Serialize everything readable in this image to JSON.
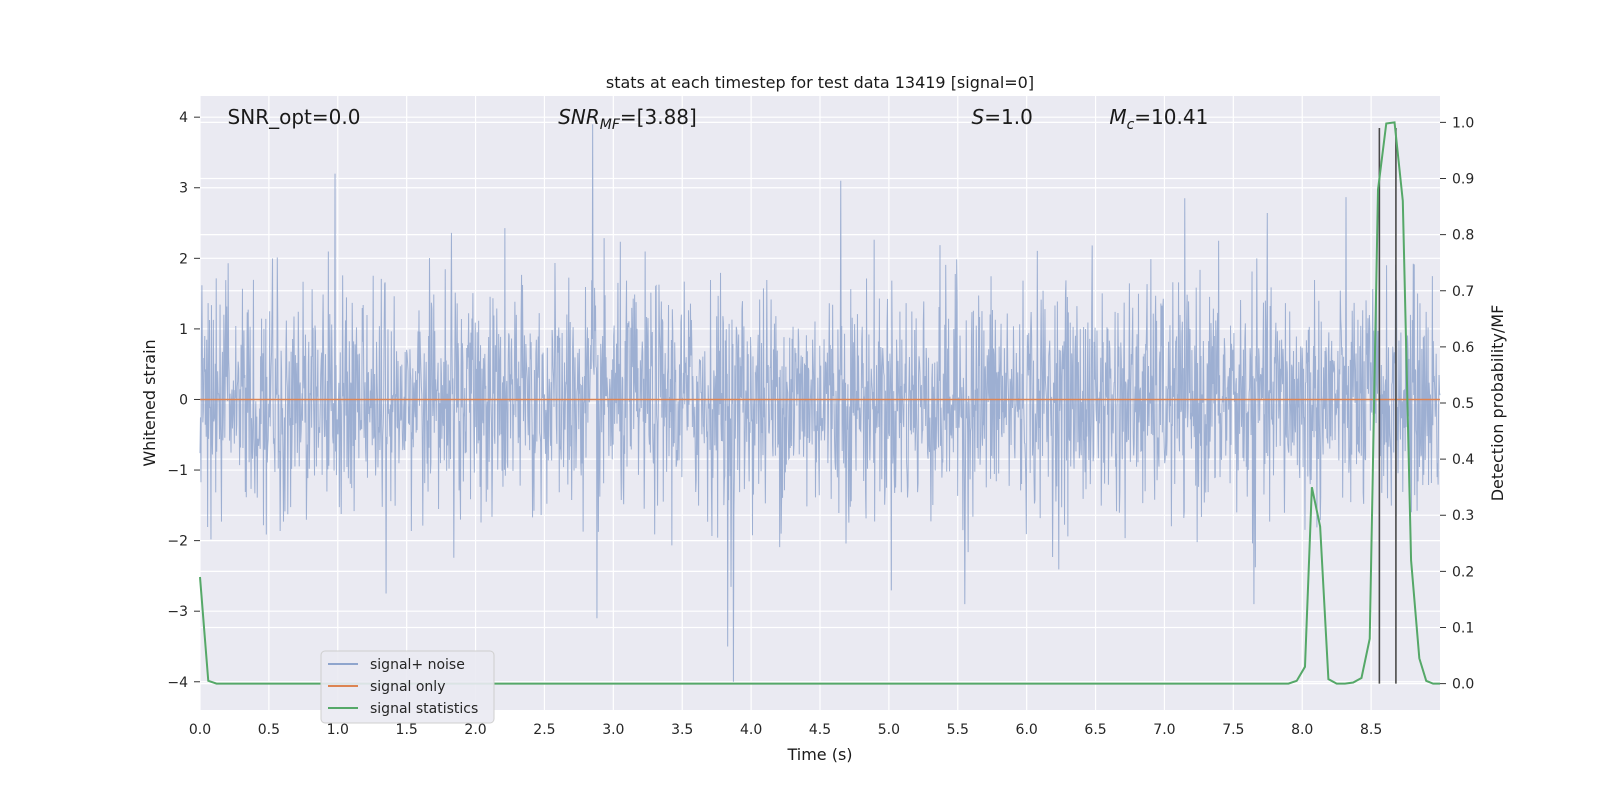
{
  "chart_data": {
    "type": "line",
    "title": "stats at each timestep for test data 13419 [signal=0]",
    "xlabel": "Time (s)",
    "ylabel": "Whitened strain",
    "y2label": "Detection probability/MF",
    "xlim": [
      0.0,
      9.0
    ],
    "ylim": [
      -4.4,
      4.3
    ],
    "y2lim": [
      -0.047,
      1.047
    ],
    "x_ticks": [
      "0.0",
      "0.5",
      "1.0",
      "1.5",
      "2.0",
      "2.5",
      "3.0",
      "3.5",
      "4.0",
      "4.5",
      "5.0",
      "5.5",
      "6.0",
      "6.5",
      "7.0",
      "7.5",
      "8.0",
      "8.5"
    ],
    "y_ticks": [
      "−4",
      "−3",
      "−2",
      "−1",
      "0",
      "1",
      "2",
      "3",
      "4"
    ],
    "y2_ticks": [
      "0.0",
      "0.1",
      "0.2",
      "0.3",
      "0.4",
      "0.5",
      "0.6",
      "0.7",
      "0.8",
      "0.9",
      "1.0"
    ],
    "grid": true,
    "background": "#eaeaf2",
    "annotations": [
      {
        "text": "SNR_opt=0.0",
        "italic": false,
        "x": 0.2
      },
      {
        "text": "SNR_MF=[3.88]",
        "italic": true,
        "x": 2.6
      },
      {
        "text": "S=1.0",
        "italic": true,
        "x": 5.6
      },
      {
        "text": "M_c=10.41",
        "italic": true,
        "x": 6.6
      }
    ],
    "annotation_y": 4.0,
    "legend": {
      "placement": "lower-left",
      "entries": [
        {
          "label": "signal+ noise",
          "color": "#8fa5cd"
        },
        {
          "label": "signal only",
          "color": "#dd8452"
        },
        {
          "label": "signal statistics",
          "color": "#55a868"
        }
      ]
    },
    "series": [
      {
        "name": "signal+ noise",
        "color": "#8fa5cd",
        "axis": "left",
        "description": "noise, approx. normal with std 0.8 over full range",
        "envelope": {
          "x": [
            0.0,
            9.0
          ],
          "extremes": [
            {
              "x": 0.98,
              "y": 3.2
            },
            {
              "x": 2.85,
              "y": 3.9
            },
            {
              "x": 4.65,
              "y": 3.1
            },
            {
              "x": 3.83,
              "y": -3.5
            },
            {
              "x": 3.87,
              "y": -4.0
            },
            {
              "x": 2.88,
              "y": -3.1
            },
            {
              "x": 1.35,
              "y": -2.75
            },
            {
              "x": 5.55,
              "y": -2.9
            },
            {
              "x": 7.65,
              "y": -2.9
            }
          ]
        }
      },
      {
        "name": "signal only",
        "color": "#dd8452",
        "axis": "left",
        "x": [
          0.0,
          9.0
        ],
        "values": [
          0.0,
          0.0
        ]
      },
      {
        "name": "signal statistics",
        "color": "#55a868",
        "axis": "right",
        "x": [
          0.0,
          0.06,
          0.12,
          0.2,
          1.0,
          2.0,
          3.0,
          4.0,
          5.0,
          6.0,
          7.0,
          7.9,
          7.96,
          8.02,
          8.07,
          8.13,
          8.19,
          8.25,
          8.31,
          8.37,
          8.43,
          8.49,
          8.55,
          8.61,
          8.67,
          8.73,
          8.79,
          8.85,
          8.9,
          8.95,
          9.0
        ],
        "values": [
          0.19,
          0.005,
          0.0,
          0.0,
          0.0,
          0.0,
          0.0,
          0.0,
          0.0,
          0.0,
          0.0,
          0.0,
          0.005,
          0.03,
          0.35,
          0.28,
          0.008,
          0.0,
          0.0,
          0.002,
          0.01,
          0.08,
          0.88,
          0.998,
          1.0,
          0.86,
          0.22,
          0.045,
          0.005,
          0.0,
          0.0
        ]
      }
    ],
    "vlines": [
      {
        "x": 8.56,
        "y2": [
          0.0,
          0.99
        ],
        "color": "#4a4a4a"
      },
      {
        "x": 8.68,
        "y2": [
          0.0,
          0.99
        ],
        "color": "#4a4a4a"
      }
    ]
  }
}
